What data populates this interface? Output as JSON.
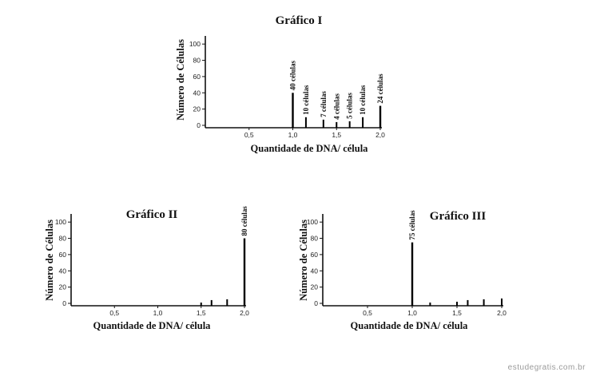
{
  "watermark": "estudegratis.com.br",
  "chart_data": [
    {
      "type": "bar",
      "title": "Gráfico I",
      "xlabel": "Quantidade de DNA/ célula",
      "ylabel": "Número de Células",
      "xticks": [
        "0,5",
        "1,0",
        "1,5",
        "2,0"
      ],
      "yticks": [
        "0",
        "20",
        "40",
        "60",
        "80",
        "100"
      ],
      "xlim": [
        0,
        2.0
      ],
      "ylim": [
        0,
        110
      ],
      "bars": [
        {
          "x": 1.0,
          "value": 40,
          "label": "40 células"
        },
        {
          "x": 1.15,
          "value": 10,
          "label": "10 células"
        },
        {
          "x": 1.35,
          "value": 7,
          "label": "7 células"
        },
        {
          "x": 1.5,
          "value": 4,
          "label": "4 células"
        },
        {
          "x": 1.65,
          "value": 5,
          "label": "5 células"
        },
        {
          "x": 1.8,
          "value": 10,
          "label": "10 células"
        },
        {
          "x": 2.0,
          "value": 24,
          "label": "24 células"
        }
      ]
    },
    {
      "type": "bar",
      "title": "Gráfico II",
      "xlabel": "Quantidade de DNA/ célula",
      "ylabel": "Número de Células",
      "xticks": [
        "0,5",
        "1,0",
        "1,5",
        "2,0"
      ],
      "yticks": [
        "0",
        "20",
        "40",
        "60",
        "80",
        "100"
      ],
      "xlim": [
        0,
        2.0
      ],
      "ylim": [
        0,
        110
      ],
      "bars": [
        {
          "x": 1.5,
          "value": 1,
          "label": ""
        },
        {
          "x": 1.62,
          "value": 4,
          "label": ""
        },
        {
          "x": 1.8,
          "value": 5,
          "label": ""
        },
        {
          "x": 2.0,
          "value": 80,
          "label": "80 células"
        }
      ]
    },
    {
      "type": "bar",
      "title": "Gráfico III",
      "xlabel": "Quantidade de DNA/ célula",
      "ylabel": "Número de Células",
      "xticks": [
        "0,5",
        "1,0",
        "1,5",
        "2,0"
      ],
      "yticks": [
        "0",
        "20",
        "40",
        "60",
        "80",
        "100"
      ],
      "xlim": [
        0,
        2.0
      ],
      "ylim": [
        0,
        110
      ],
      "bars": [
        {
          "x": 1.0,
          "value": 75,
          "label": "75 células"
        },
        {
          "x": 1.2,
          "value": 1,
          "label": ""
        },
        {
          "x": 1.5,
          "value": 2,
          "label": ""
        },
        {
          "x": 1.62,
          "value": 4,
          "label": ""
        },
        {
          "x": 1.8,
          "value": 5,
          "label": ""
        },
        {
          "x": 2.0,
          "value": 6,
          "label": ""
        }
      ]
    }
  ]
}
